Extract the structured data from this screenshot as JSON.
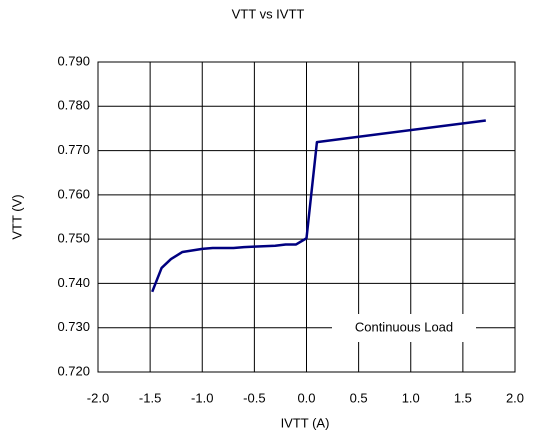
{
  "chart_data": {
    "type": "line",
    "title": "VTT vs IVTT",
    "xlabel": "IVTT (A)",
    "ylabel": "VTT (V)",
    "annotation": "Continuous Load",
    "series": [
      {
        "color": "#000080",
        "x": [
          -1.48,
          -1.39,
          -1.3,
          -1.19,
          -1.0,
          -0.9,
          -0.7,
          -0.6,
          -0.5,
          -0.3,
          -0.2,
          -0.1,
          0.0,
          0.1,
          1.72
        ],
        "values": [
          0.7381,
          0.7435,
          0.7455,
          0.7471,
          0.7478,
          0.748,
          0.748,
          0.7482,
          0.7483,
          0.7485,
          0.7488,
          0.7488,
          0.7502,
          0.7719,
          0.7768
        ]
      }
    ],
    "xlim": [
      -2,
      2
    ],
    "xticks": [
      {
        "value": -2,
        "label": "-2.0"
      },
      {
        "value": -1.5,
        "label": "-1.5"
      },
      {
        "value": -1,
        "label": "-1.0"
      },
      {
        "value": -0.5,
        "label": "-0.5"
      },
      {
        "value": 0,
        "label": "0.0"
      },
      0.5,
      {
        "value": 1,
        "label": "1.0"
      },
      1.5,
      {
        "value": 2,
        "label": "2.0"
      }
    ],
    "ylim": [
      0.72,
      0.79
    ],
    "yticks": [
      {
        "value": 0.72,
        "label": "0.720"
      },
      {
        "value": 0.73,
        "label": "0.730"
      },
      {
        "value": 0.74,
        "label": "0.740"
      },
      {
        "value": 0.75,
        "label": "0.750"
      },
      {
        "value": 0.76,
        "label": "0.760"
      },
      {
        "value": 0.77,
        "label": "0.770"
      },
      {
        "value": 0.78,
        "label": "0.780"
      },
      {
        "value": 0.79,
        "label": "0.790"
      }
    ],
    "grid": true
  }
}
